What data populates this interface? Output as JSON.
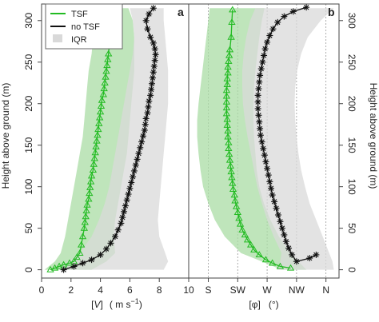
{
  "chart_data": [
    {
      "type": "line",
      "panel_label": "a",
      "xlabel_parts": {
        "lb": "[",
        "var": "V",
        "rb": "]",
        "unit": "( m s",
        "exp": "−1",
        "close": ")"
      },
      "ylabel": "Height above ground  (m)",
      "xlim": [
        0,
        10
      ],
      "ylim": [
        -10,
        320
      ],
      "x_ticks": [
        "0",
        "2",
        "4",
        "6",
        "8",
        "10"
      ],
      "x_tick_values": [
        0,
        2,
        4,
        6,
        8,
        10
      ],
      "y_ticks": [
        "0",
        "50",
        "100",
        "150",
        "200",
        "250",
        "300"
      ],
      "y_tick_values": [
        0,
        50,
        100,
        150,
        200,
        250,
        300
      ],
      "grid": false,
      "legend": {
        "position": "top-left",
        "items": [
          {
            "label": "TSF",
            "kind": "line",
            "color": "#22bb22"
          },
          {
            "label": "no TSF",
            "kind": "line",
            "color": "#111111"
          },
          {
            "label": "IQR",
            "kind": "patch",
            "color": "#d9d9d9"
          }
        ]
      },
      "series": [
        {
          "name": "TSF",
          "color": "#22bb22",
          "marker": "triangle",
          "x": [
            0.6,
            0.9,
            1.2,
            1.5,
            1.9,
            2.2,
            2.4,
            2.6,
            2.7,
            2.8,
            2.9,
            2.95,
            3.0,
            3.05,
            3.1,
            3.2,
            3.25,
            3.3,
            3.35,
            3.4,
            3.5,
            3.55,
            3.6,
            3.65,
            3.7,
            3.75,
            3.8,
            3.85,
            3.9,
            3.95,
            4.0,
            4.05,
            4.1,
            4.2,
            4.25,
            4.3,
            4.35,
            4.4,
            4.45,
            4.5,
            4.55,
            4.6,
            4.7,
            4.8,
            4.85
          ],
          "y": [
            0,
            2,
            4,
            6,
            8,
            10,
            15,
            20,
            30,
            40,
            50,
            57,
            64,
            71,
            78,
            85,
            92,
            99,
            106,
            113,
            120,
            127,
            134,
            141,
            148,
            155,
            162,
            169,
            176,
            183,
            190,
            197,
            204,
            211,
            218,
            225,
            232,
            239,
            246,
            253,
            260,
            270,
            285,
            300,
            313
          ]
        },
        {
          "name": "no TSF",
          "color": "#111111",
          "marker": "asterisk",
          "x": [
            1.5,
            2.2,
            2.8,
            3.4,
            4.0,
            4.4,
            4.7,
            5.0,
            5.2,
            5.4,
            5.5,
            5.6,
            5.7,
            5.8,
            5.9,
            6.0,
            6.1,
            6.2,
            6.3,
            6.4,
            6.5,
            6.6,
            6.7,
            6.8,
            6.9,
            7.0,
            7.05,
            7.1,
            7.2,
            7.25,
            7.3,
            7.4,
            7.45,
            7.5,
            7.55,
            7.6,
            7.65,
            7.7,
            7.75,
            7.7,
            7.6,
            7.4,
            7.2,
            7.1,
            7.3,
            7.6
          ],
          "y": [
            0,
            4,
            8,
            12,
            18,
            25,
            32,
            40,
            48,
            56,
            63,
            70,
            77,
            84,
            91,
            98,
            105,
            112,
            119,
            126,
            133,
            140,
            147,
            154,
            161,
            168,
            175,
            182,
            189,
            196,
            203,
            210,
            217,
            224,
            231,
            238,
            245,
            252,
            259,
            266,
            273,
            280,
            290,
            300,
            308,
            315
          ]
        }
      ],
      "iqr_bands": [
        {
          "name": "TSF",
          "color": "#a9dca4",
          "y": [
            0,
            10,
            20,
            40,
            60,
            80,
            100,
            120,
            140,
            160,
            180,
            200,
            220,
            240,
            260,
            280,
            300,
            315
          ],
          "lo": [
            0.2,
            0.9,
            1.3,
            1.6,
            1.8,
            2.0,
            2.2,
            2.4,
            2.6,
            2.8,
            2.9,
            3.0,
            3.1,
            3.2,
            3.4,
            3.5,
            3.6,
            3.7
          ],
          "hi": [
            3.4,
            4.4,
            5.0,
            4.9,
            5.0,
            5.2,
            5.4,
            5.6,
            5.8,
            5.9,
            6.0,
            6.1,
            6.2,
            6.3,
            6.3,
            6.3,
            6.2,
            5.9
          ]
        },
        {
          "name": "no TSF",
          "color": "#d9d9d9",
          "y": [
            0,
            10,
            20,
            40,
            60,
            80,
            100,
            120,
            140,
            160,
            180,
            200,
            220,
            240,
            260,
            280,
            300,
            315
          ],
          "lo": [
            1.0,
            1.8,
            2.6,
            3.4,
            3.9,
            4.3,
            4.6,
            4.8,
            5.0,
            5.2,
            5.4,
            5.6,
            5.8,
            6.0,
            6.2,
            6.3,
            6.2,
            6.0
          ],
          "hi": [
            8.3,
            8.6,
            8.4,
            8.0,
            7.9,
            8.0,
            8.1,
            8.2,
            8.3,
            8.4,
            8.5,
            8.6,
            8.6,
            8.6,
            8.5,
            8.4,
            8.3,
            8.3
          ]
        }
      ]
    },
    {
      "type": "line",
      "panel_label": "b",
      "xlabel_parts": {
        "lb": "[",
        "var": "φ",
        "rb": "]",
        "unit": "(°)"
      },
      "ylabel": "Height above ground  (m)",
      "xlim": [
        150,
        380
      ],
      "ylim": [
        -10,
        320
      ],
      "x_ticks": [
        "S",
        "SW",
        "W",
        "NW",
        "N"
      ],
      "x_tick_values": [
        180,
        225,
        270,
        315,
        360
      ],
      "y_ticks": [
        "0",
        "50",
        "100",
        "150",
        "200",
        "250",
        "300"
      ],
      "y_tick_values": [
        0,
        50,
        100,
        150,
        200,
        250,
        300
      ],
      "grid": true,
      "series": [
        {
          "name": "TSF",
          "color": "#22bb22",
          "marker": "triangle",
          "x": [
            306,
            290,
            278,
            268,
            258,
            250,
            245,
            240,
            236,
            232,
            229,
            227,
            225,
            223,
            221,
            220,
            218,
            217,
            216,
            215,
            214,
            213,
            212,
            211,
            211,
            210,
            210,
            209,
            209,
            208,
            208,
            208,
            208,
            208,
            209,
            209,
            210,
            210,
            211,
            212,
            213,
            215,
            216,
            217
          ],
          "y": [
            2,
            4,
            8,
            12,
            18,
            24,
            30,
            36,
            42,
            48,
            55,
            62,
            69,
            76,
            83,
            90,
            97,
            104,
            111,
            118,
            125,
            132,
            139,
            146,
            153,
            160,
            167,
            174,
            181,
            188,
            195,
            202,
            209,
            216,
            223,
            230,
            237,
            244,
            251,
            258,
            265,
            280,
            298,
            313
          ]
        },
        {
          "name": "no TSF",
          "color": "#111111",
          "marker": "asterisk",
          "x": [
            345,
            335,
            315,
            308,
            303,
            299,
            296,
            293,
            290,
            287,
            284,
            281,
            278,
            276,
            274,
            272,
            270,
            268,
            266,
            264,
            262,
            260,
            259,
            258,
            257,
            256,
            256,
            256,
            257,
            258,
            259,
            261,
            263,
            265,
            267,
            270,
            274,
            279,
            286,
            296,
            310,
            330
          ],
          "y": [
            18,
            14,
            10,
            18,
            26,
            34,
            42,
            50,
            58,
            66,
            74,
            82,
            90,
            98,
            106,
            114,
            122,
            130,
            138,
            146,
            154,
            162,
            170,
            178,
            186,
            194,
            202,
            210,
            218,
            226,
            234,
            242,
            250,
            258,
            266,
            274,
            282,
            290,
            298,
            305,
            311,
            316
          ]
        }
      ],
      "iqr_bands": [
        {
          "name": "TSF",
          "color": "#a9dca4",
          "y": [
            0,
            10,
            20,
            40,
            60,
            80,
            100,
            120,
            140,
            160,
            180,
            200,
            220,
            240,
            260,
            280,
            300,
            315
          ],
          "lo": [
            292,
            262,
            230,
            205,
            190,
            180,
            172,
            168,
            165,
            163,
            163,
            165,
            168,
            171,
            174,
            177,
            180,
            182
          ],
          "hi": [
            330,
            318,
            305,
            288,
            275,
            265,
            258,
            254,
            252,
            250,
            249,
            249,
            250,
            252,
            255,
            258,
            262,
            266
          ]
        },
        {
          "name": "no TSF",
          "color": "#d9d9d9",
          "y": [
            0,
            10,
            20,
            40,
            60,
            80,
            100,
            120,
            140,
            160,
            180,
            200,
            220,
            240,
            260,
            280,
            300,
            315
          ],
          "lo": [
            285,
            290,
            292,
            280,
            270,
            262,
            255,
            250,
            245,
            240,
            236,
            233,
            232,
            232,
            234,
            238,
            244,
            252
          ],
          "hi": [
            372,
            370,
            365,
            355,
            345,
            335,
            328,
            322,
            318,
            315,
            313,
            312,
            313,
            316,
            322,
            332,
            352,
            372
          ]
        }
      ]
    }
  ]
}
